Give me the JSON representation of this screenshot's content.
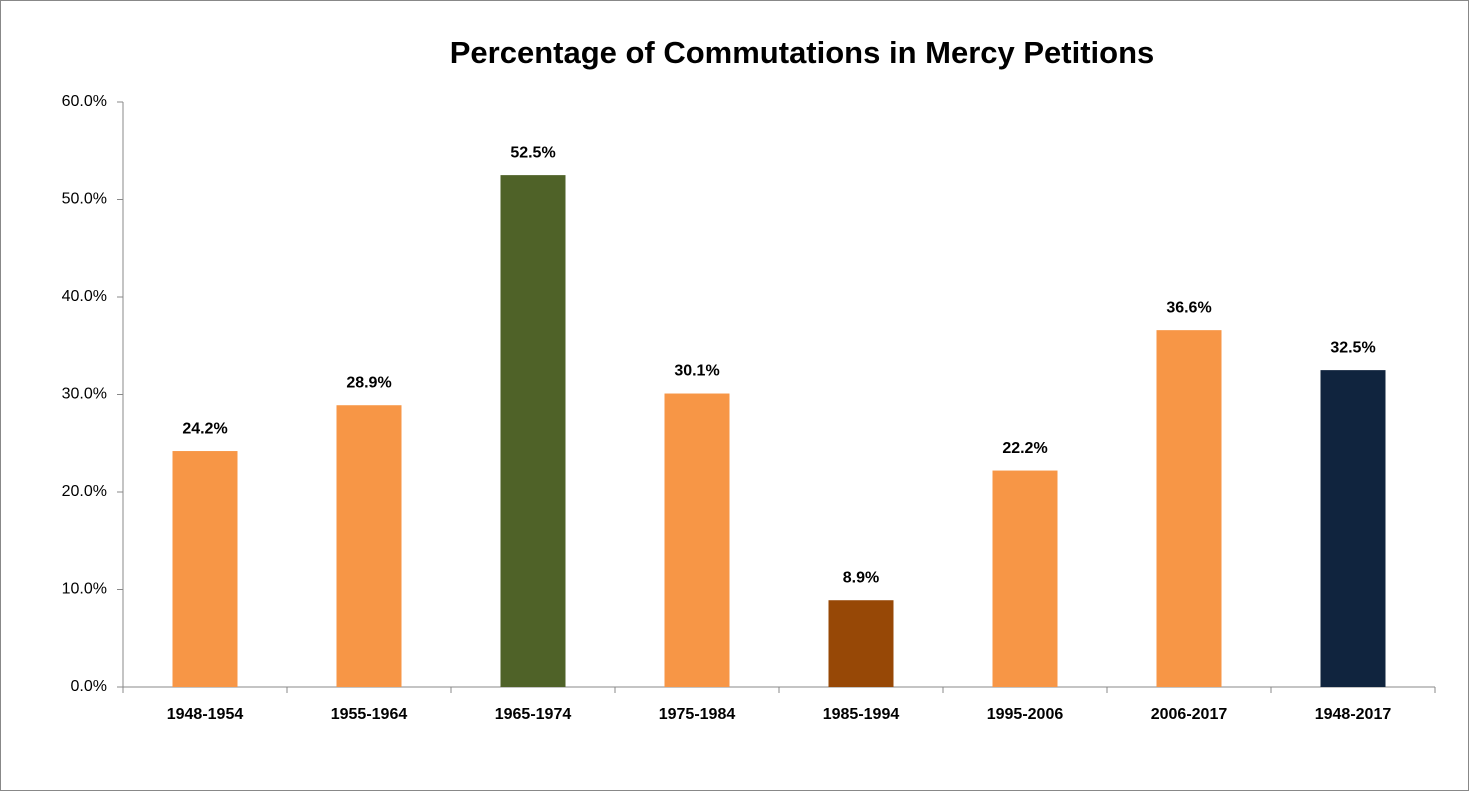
{
  "chart_data": {
    "type": "bar",
    "title": "Percentage of Commutations in Mercy Petitions",
    "categories": [
      "1948-1954",
      "1955-1964",
      "1965-1974",
      "1975-1984",
      "1985-1994",
      "1995-2006",
      "2006-2017",
      "1948-2017"
    ],
    "values": [
      24.2,
      28.9,
      52.5,
      30.1,
      8.9,
      22.2,
      36.6,
      32.5
    ],
    "value_labels": [
      "24.2%",
      "28.9%",
      "52.5%",
      "30.1%",
      "8.9%",
      "22.2%",
      "36.6%",
      "32.5%"
    ],
    "colors": [
      "#f79646",
      "#f79646",
      "#4f6228",
      "#f79646",
      "#974806",
      "#f79646",
      "#f79646",
      "#10243e"
    ],
    "ylim": [
      0,
      60
    ],
    "yticks": [
      {
        "value": 0,
        "label": "0.0%"
      },
      {
        "value": 10,
        "label": "10.0%"
      },
      {
        "value": 20,
        "label": "20.0%"
      },
      {
        "value": 30,
        "label": "30.0%"
      },
      {
        "value": 40,
        "label": "40.0%"
      },
      {
        "value": 50,
        "label": "50.0%"
      },
      {
        "value": 60,
        "label": "60.0%"
      }
    ],
    "grid": false
  }
}
